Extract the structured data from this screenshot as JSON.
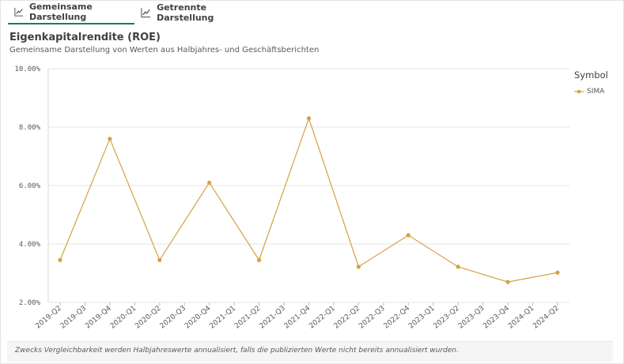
{
  "tabs": [
    {
      "label": "Gemeinsame Darstellung",
      "icon": "line-chart-icon",
      "active": true
    },
    {
      "label": "Getrennte Darstellung",
      "icon": "line-chart-icon",
      "active": false
    }
  ],
  "footnote": "Zwecks Vergleichbarkeit werden Halbjahreswerte annualisiert, falls die publizierten Werte nicht bereits annualisiert wurden.",
  "colors": {
    "series": "#d4a240",
    "grid": "#e6e6e6",
    "accent": "#1d7a5e"
  },
  "chart_data": {
    "type": "line",
    "title": "Eigenkapitalrendite (ROE)",
    "subtitle": "Gemeinsame Darstellung von Werten aus Halbjahres- und Geschäftsberichten",
    "categories": [
      "2019-Q2",
      "2019-Q3",
      "2019-Q4",
      "2020-Q1",
      "2020-Q2",
      "2020-Q3",
      "2020-Q4",
      "2021-Q1",
      "2021-Q2",
      "2021-Q3",
      "2021-Q4",
      "2022-Q1",
      "2022-Q2",
      "2022-Q3",
      "2022-Q4",
      "2023-Q1",
      "2023-Q2",
      "2023-Q3",
      "2023-Q4",
      "2024-Q1",
      "2024-Q2"
    ],
    "y_ticks": [
      "10.00%",
      "8.00%",
      "6.00%",
      "4.00%",
      "2.00%"
    ],
    "ylim": [
      2,
      10
    ],
    "grid": true,
    "legend_title": "Symbol",
    "legend_position": "right",
    "series": [
      {
        "name": "SIMA",
        "values": [
          3.45,
          null,
          7.6,
          null,
          3.45,
          null,
          6.1,
          null,
          3.45,
          null,
          8.3,
          null,
          3.22,
          null,
          4.3,
          null,
          3.22,
          null,
          2.7,
          null,
          3.02
        ]
      }
    ]
  }
}
